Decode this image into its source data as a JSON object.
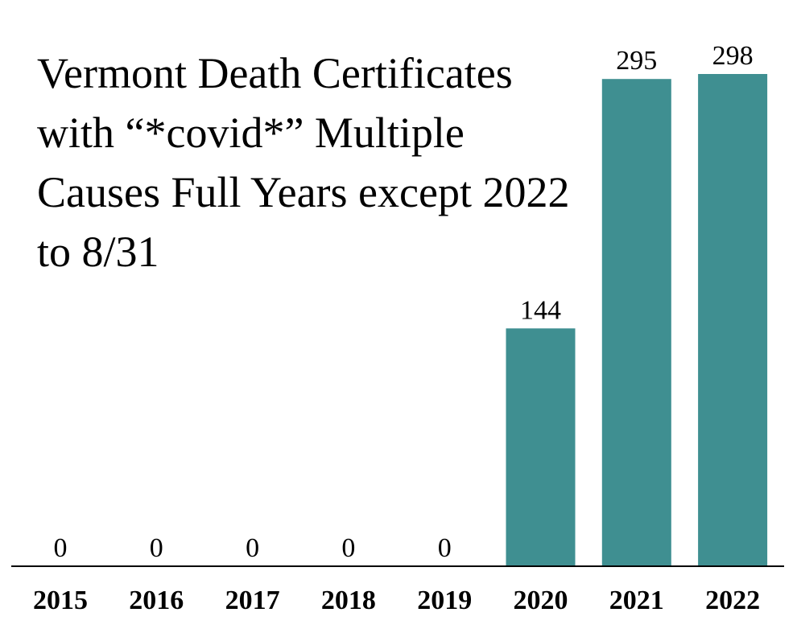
{
  "chart_data": {
    "type": "bar",
    "title": "Vermont Death Certificates with “*covid*” Multiple Causes Full Years except 2022 to 8/31",
    "categories": [
      "2015",
      "2016",
      "2017",
      "2018",
      "2019",
      "2020",
      "2021",
      "2022"
    ],
    "values": [
      0,
      0,
      0,
      0,
      0,
      144,
      295,
      298
    ],
    "xlabel": "",
    "ylabel": "",
    "ylim": [
      0,
      298
    ],
    "grid": false,
    "data_labels": true,
    "bar_color": "#3f8f91"
  }
}
